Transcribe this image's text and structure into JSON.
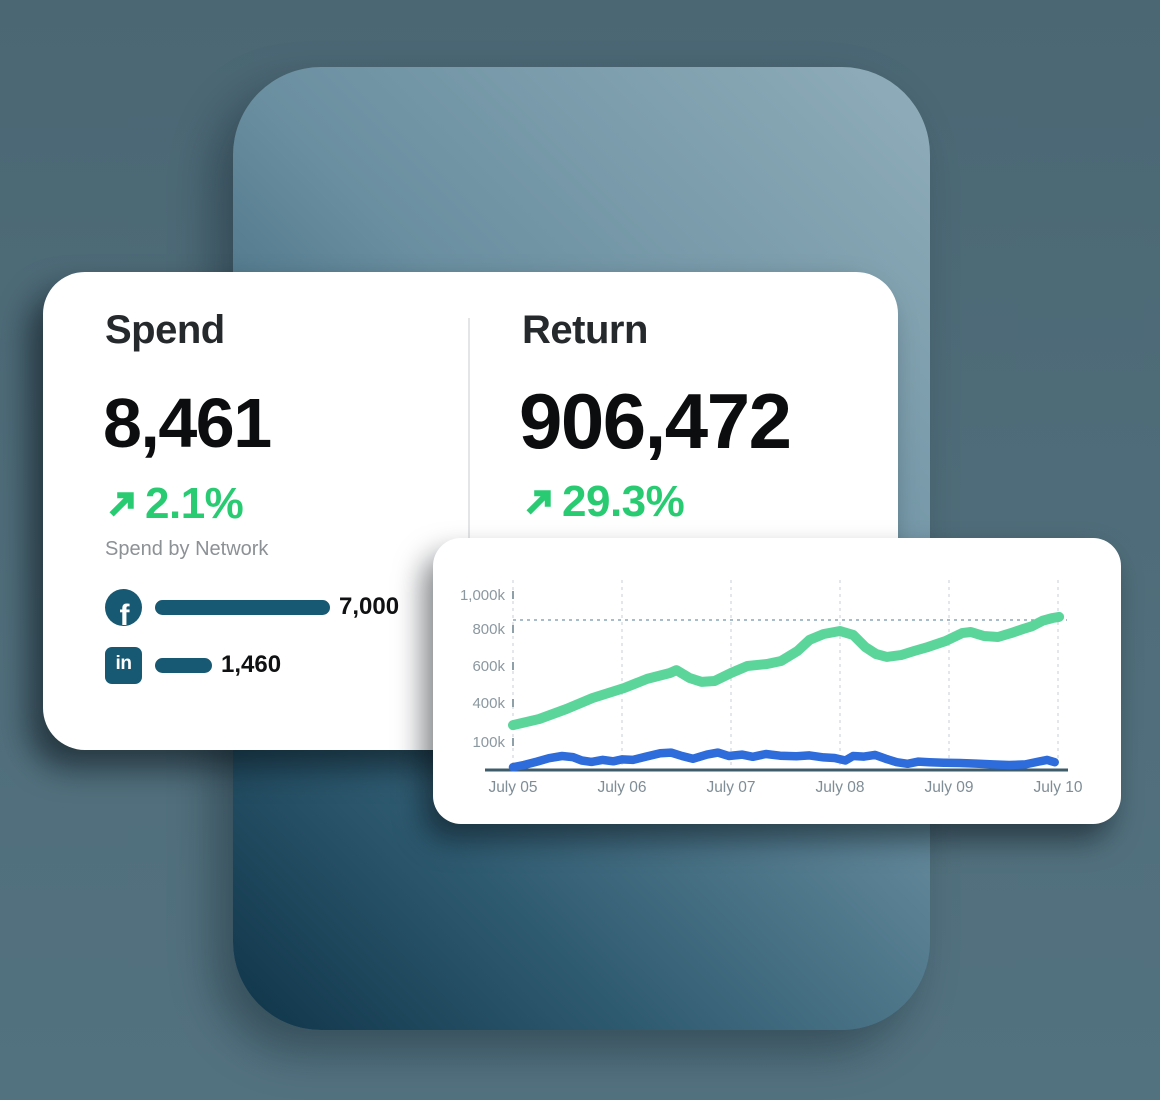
{
  "colors": {
    "page_bg_top": "#4B6774",
    "page_bg_bottom": "#537280",
    "hero_top": "#90ADBA",
    "hero_mid": "#6A8FA0",
    "hero_low": "#2E5A70",
    "hero_bottom": "#0F3449",
    "card_bg": "#FFFFFF",
    "teal": "#175973",
    "green": "#28CB72",
    "heading_text": "#26292C",
    "number_text": "#0B0D0E",
    "muted_text": "#8C9196",
    "divider": "#E3E5E7",
    "axis_line": "#3E5C69",
    "grid_line": "#D7DCE0",
    "ref_line": "#8BA7B7",
    "y_tick_text": "#8B98A0",
    "x_tick_text": "#7E8D96"
  },
  "stats_card": {
    "spend": {
      "label": "Spend",
      "value": "8,461",
      "change": "2.1%",
      "trend": "up"
    },
    "return": {
      "label": "Return",
      "value": "906,472",
      "change": "29.3%",
      "trend": "up"
    },
    "breakdown_label": "Spend by Network",
    "networks": [
      {
        "id": "facebook",
        "glyph": "f",
        "value": "7,000",
        "value_num": 7000
      },
      {
        "id": "linkedin",
        "glyph": "in",
        "value": "1,460",
        "value_num": 1460
      }
    ]
  },
  "chart_data": {
    "type": "line",
    "title": "",
    "xlabel": "",
    "ylabel": "",
    "x_tick_labels": [
      "July 05",
      "July 06",
      "July 07",
      "July 08",
      "July 09",
      "July 10"
    ],
    "y_tick_labels": [
      "1,000k",
      "800k",
      "600k",
      "400k",
      "100k"
    ],
    "y_tick_values_k": [
      1000,
      800,
      600,
      400,
      100
    ],
    "ylim_k": [
      0,
      1050
    ],
    "reference_line_k": 853,
    "grid": "dashed-vertical",
    "legend_position": "none",
    "series": [
      {
        "name": "Return",
        "color": "#5CD59B",
        "stroke_width": 10,
        "points_day_k": [
          [
            0,
            230
          ],
          [
            0.24,
            277
          ],
          [
            0.49,
            354
          ],
          [
            0.73,
            427
          ],
          [
            1.02,
            481
          ],
          [
            1.23,
            530
          ],
          [
            1.44,
            562
          ],
          [
            1.5,
            578
          ],
          [
            1.62,
            535
          ],
          [
            1.73,
            514
          ],
          [
            1.85,
            519
          ],
          [
            2.0,
            562
          ],
          [
            2.15,
            600
          ],
          [
            2.33,
            611
          ],
          [
            2.46,
            627
          ],
          [
            2.61,
            681
          ],
          [
            2.72,
            741
          ],
          [
            2.85,
            773
          ],
          [
            3.0,
            789
          ],
          [
            3.12,
            768
          ],
          [
            3.23,
            703
          ],
          [
            3.33,
            665
          ],
          [
            3.43,
            649
          ],
          [
            3.56,
            659
          ],
          [
            3.68,
            681
          ],
          [
            3.81,
            703
          ],
          [
            3.97,
            735
          ],
          [
            4.12,
            778
          ],
          [
            4.2,
            784
          ],
          [
            4.32,
            762
          ],
          [
            4.45,
            757
          ],
          [
            4.57,
            778
          ],
          [
            4.68,
            800
          ],
          [
            4.76,
            816
          ],
          [
            4.86,
            849
          ],
          [
            4.95,
            865
          ],
          [
            5.01,
            871
          ]
        ]
      },
      {
        "name": "Spend",
        "color": "#2D6CDA",
        "stroke_width": 8.5,
        "points_day_k": [
          [
            0,
            10
          ],
          [
            0.1,
            18
          ],
          [
            0.22,
            30
          ],
          [
            0.33,
            42
          ],
          [
            0.45,
            50
          ],
          [
            0.55,
            46
          ],
          [
            0.63,
            34
          ],
          [
            0.72,
            29
          ],
          [
            0.82,
            36
          ],
          [
            0.92,
            31
          ],
          [
            1.0,
            38
          ],
          [
            1.1,
            36
          ],
          [
            1.22,
            48
          ],
          [
            1.35,
            60
          ],
          [
            1.45,
            62
          ],
          [
            1.55,
            50
          ],
          [
            1.65,
            40
          ],
          [
            1.78,
            55
          ],
          [
            1.88,
            62
          ],
          [
            1.98,
            50
          ],
          [
            2.1,
            55
          ],
          [
            2.2,
            47
          ],
          [
            2.32,
            57
          ],
          [
            2.45,
            51
          ],
          [
            2.6,
            49
          ],
          [
            2.72,
            52
          ],
          [
            2.85,
            45
          ],
          [
            2.95,
            43
          ],
          [
            3.05,
            34
          ],
          [
            3.12,
            50
          ],
          [
            3.22,
            48
          ],
          [
            3.32,
            54
          ],
          [
            3.42,
            40
          ],
          [
            3.52,
            28
          ],
          [
            3.62,
            22
          ],
          [
            3.72,
            30
          ],
          [
            3.82,
            28
          ],
          [
            3.95,
            26
          ],
          [
            4.1,
            25
          ],
          [
            4.25,
            23
          ],
          [
            4.4,
            20
          ],
          [
            4.55,
            18
          ],
          [
            4.7,
            20
          ],
          [
            4.82,
            30
          ],
          [
            4.9,
            36
          ],
          [
            4.97,
            28
          ]
        ]
      }
    ]
  }
}
